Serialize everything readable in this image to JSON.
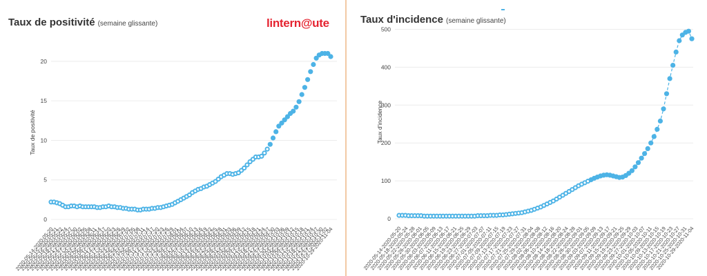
{
  "brand": {
    "logo_text": "linternaute",
    "logo_color": "#e52330"
  },
  "colors": {
    "series": "#4db3e6",
    "grid": "#ececec",
    "divider": "#f2c9a4"
  },
  "chart_data": [
    {
      "type": "scatter",
      "title": "Taux de positivité",
      "subtitle": "(semaine glissante)",
      "xlabel": "",
      "ylabel": "Taux de positivité",
      "ylim": [
        0,
        22
      ],
      "yticks": [
        0,
        5,
        10,
        15,
        20
      ],
      "grid": true,
      "legend": "none",
      "series": [
        {
          "values": [
            2.2,
            2.2,
            2.1,
            2.0,
            1.8,
            1.6,
            1.6,
            1.7,
            1.7,
            1.6,
            1.7,
            1.6,
            1.6,
            1.6,
            1.6,
            1.6,
            1.5,
            1.5,
            1.6,
            1.6,
            1.7,
            1.6,
            1.6,
            1.5,
            1.5,
            1.4,
            1.4,
            1.3,
            1.3,
            1.3,
            1.2,
            1.2,
            1.3,
            1.3,
            1.3,
            1.4,
            1.4,
            1.5,
            1.5,
            1.6,
            1.7,
            1.8,
            1.9,
            2.1,
            2.3,
            2.5,
            2.7,
            2.9,
            3.1,
            3.4,
            3.6,
            3.8,
            3.9,
            4.1,
            4.2,
            4.4,
            4.6,
            4.8,
            5.1,
            5.4,
            5.6,
            5.8,
            5.8,
            5.7,
            5.8,
            5.9,
            6.2,
            6.5,
            6.9,
            7.3,
            7.6,
            7.9,
            7.9,
            8.0,
            8.4,
            8.9,
            9.5,
            10.3,
            11.1,
            11.8,
            12.2,
            12.6,
            13.0,
            13.4,
            13.7,
            14.2,
            14.9,
            15.8,
            16.7,
            17.7,
            18.7,
            19.6,
            20.4,
            20.8,
            21.0,
            21.0,
            21.0,
            20.6
          ]
        }
      ],
      "x_tick_labels": [
        "2020-05-14-2020-05-20",
        "2020-05-15-2020-05-21",
        "2020-05-16-2020-05-22",
        "2020-05-18-2020-05-24",
        "2020-05-21-2020-05-27",
        "2020-05-24-2020-05-30",
        "2020-05-27-2020-06-02",
        "2020-05-30-2020-06-05",
        "2020-06-02-2020-06-08",
        "2020-06-05-2020-06-11",
        "2020-06-08-2020-06-14",
        "2020-06-11-2020-06-17",
        "2020-06-14-2020-06-20",
        "2020-06-17-2020-06-23",
        "2020-06-20-2020-06-26",
        "2020-06-23-2020-06-29",
        "2020-06-26-2020-07-02",
        "2020-06-29-2020-07-05",
        "2020-07-02-2020-07-08",
        "2020-07-05-2020-07-11",
        "2020-07-08-2020-07-14",
        "2020-07-11-2020-07-17",
        "2020-07-14-2020-07-20",
        "2020-07-17-2020-07-23",
        "2020-07-20-2020-07-26",
        "2020-07-23-2020-07-29",
        "2020-07-26-2020-08-01",
        "2020-07-29-2020-08-04",
        "2020-08-01-2020-08-07",
        "2020-08-04-2020-08-10",
        "2020-08-07-2020-08-13",
        "2020-08-10-2020-08-16",
        "2020-08-13-2020-08-19",
        "2020-08-16-2020-08-22",
        "2020-08-19-2020-08-25",
        "2020-08-22-2020-08-28",
        "2020-08-25-2020-08-31",
        "2020-08-28-2020-09-03",
        "2020-08-31-2020-09-06",
        "2020-09-03-2020-09-09",
        "2020-09-06-2020-09-12",
        "2020-09-09-2020-09-15",
        "2020-09-12-2020-09-18",
        "2020-09-15-2020-09-21",
        "2020-09-18-2020-09-24",
        "2020-09-21-2020-09-27",
        "2020-09-24-2020-09-30",
        "2020-09-27-2020-10-03",
        "2020-09-30-2020-10-06",
        "2020-10-03-2020-10-09",
        "2020-10-06-2020-10-12",
        "2020-10-09-2020-10-15",
        "2020-10-12-2020-10-18",
        "2020-10-15-2020-10-21",
        "2020-10-18-2020-10-24",
        "2020-10-21-2020-10-27",
        "2020-10-24-2020-10-30",
        "2020-10-27-2020-11-02",
        "2020-10-29-2020-11-04"
      ]
    },
    {
      "type": "line",
      "title": "Taux d'incidence",
      "subtitle": "(semaine glissante)",
      "xlabel": "",
      "ylabel": "Taux d'incidence",
      "ylim": [
        0,
        510
      ],
      "yticks": [
        0,
        100,
        200,
        300,
        400,
        500
      ],
      "grid": true,
      "legend": "none",
      "series": [
        {
          "values": [
            9,
            9,
            9,
            8,
            8,
            8,
            8,
            8,
            7,
            7,
            7,
            7,
            7,
            7,
            7,
            7,
            7,
            7,
            7,
            7,
            7,
            7,
            7,
            7,
            7,
            8,
            8,
            8,
            8,
            9,
            9,
            9,
            10,
            10,
            11,
            12,
            13,
            14,
            15,
            16,
            18,
            20,
            22,
            25,
            28,
            31,
            35,
            39,
            43,
            47,
            52,
            57,
            62,
            67,
            72,
            77,
            82,
            87,
            91,
            95,
            99,
            103,
            107,
            110,
            113,
            115,
            116,
            115,
            113,
            111,
            109,
            110,
            114,
            120,
            127,
            137,
            148,
            160,
            172,
            185,
            200,
            217,
            236,
            258,
            290,
            330,
            370,
            405,
            440,
            470,
            485,
            492,
            495,
            475
          ]
        }
      ],
      "x_tick_labels": [
        "2020-05-14-2020-05-20",
        "2020-05-18-2020-05-24",
        "2020-05-22-2020-05-28",
        "2020-05-26-2020-06-01",
        "2020-05-30-2020-06-05",
        "2020-06-03-2020-06-09",
        "2020-06-07-2020-06-13",
        "2020-06-11-2020-06-17",
        "2020-06-15-2020-06-21",
        "2020-06-19-2020-06-25",
        "2020-06-23-2020-06-29",
        "2020-06-27-2020-07-03",
        "2020-07-01-2020-07-07",
        "2020-07-05-2020-07-11",
        "2020-07-09-2020-07-15",
        "2020-07-13-2020-07-19",
        "2020-07-17-2020-07-23",
        "2020-07-21-2020-07-27",
        "2020-07-25-2020-07-31",
        "2020-07-29-2020-08-04",
        "2020-08-02-2020-08-08",
        "2020-08-06-2020-08-12",
        "2020-08-10-2020-08-16",
        "2020-08-14-2020-08-20",
        "2020-08-18-2020-08-24",
        "2020-08-22-2020-08-28",
        "2020-08-26-2020-09-01",
        "2020-08-30-2020-09-05",
        "2020-09-03-2020-09-09",
        "2020-09-07-2020-09-13",
        "2020-09-11-2020-09-17",
        "2020-09-15-2020-09-21",
        "2020-09-19-2020-09-25",
        "2020-09-23-2020-09-29",
        "2020-09-27-2020-10-03",
        "2020-10-01-2020-10-07",
        "2020-10-05-2020-10-11",
        "2020-10-09-2020-10-15",
        "2020-10-13-2020-10-19",
        "2020-10-17-2020-10-23",
        "2020-10-21-2020-10-27",
        "2020-10-25-2020-10-31",
        "2020-10-29-2020-11-04"
      ]
    }
  ]
}
